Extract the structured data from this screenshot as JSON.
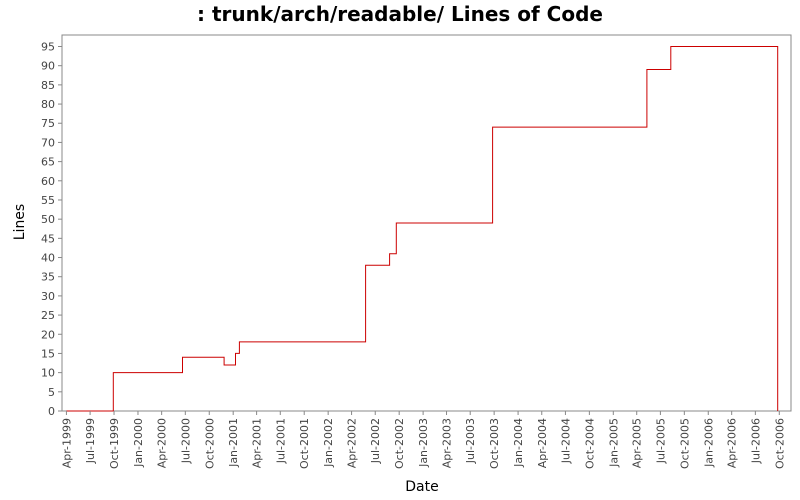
{
  "chart_data": {
    "type": "line",
    "title": ": trunk/arch/readable/ Lines of Code",
    "xlabel": "Date",
    "ylabel": "Lines",
    "ylim": [
      0,
      98
    ],
    "xlim": [
      "1999-03-15",
      "2006-11-15"
    ],
    "y_ticks": [
      0,
      5,
      10,
      15,
      20,
      25,
      30,
      35,
      40,
      45,
      50,
      55,
      60,
      65,
      70,
      75,
      80,
      85,
      90,
      95
    ],
    "x_ticks": [
      {
        "date": "1999-04-01",
        "label": "Apr-1999"
      },
      {
        "date": "1999-07-01",
        "label": "Jul-1999"
      },
      {
        "date": "1999-10-01",
        "label": "Oct-1999"
      },
      {
        "date": "2000-01-01",
        "label": "Jan-2000"
      },
      {
        "date": "2000-04-01",
        "label": "Apr-2000"
      },
      {
        "date": "2000-07-01",
        "label": "Jul-2000"
      },
      {
        "date": "2000-10-01",
        "label": "Oct-2000"
      },
      {
        "date": "2001-01-01",
        "label": "Jan-2001"
      },
      {
        "date": "2001-04-01",
        "label": "Apr-2001"
      },
      {
        "date": "2001-07-01",
        "label": "Jul-2001"
      },
      {
        "date": "2001-10-01",
        "label": "Oct-2001"
      },
      {
        "date": "2002-01-01",
        "label": "Jan-2002"
      },
      {
        "date": "2002-04-01",
        "label": "Apr-2002"
      },
      {
        "date": "2002-07-01",
        "label": "Jul-2002"
      },
      {
        "date": "2002-10-01",
        "label": "Oct-2002"
      },
      {
        "date": "2003-01-01",
        "label": "Jan-2003"
      },
      {
        "date": "2003-04-01",
        "label": "Apr-2003"
      },
      {
        "date": "2003-07-01",
        "label": "Jul-2003"
      },
      {
        "date": "2003-10-01",
        "label": "Oct-2003"
      },
      {
        "date": "2004-01-01",
        "label": "Jan-2004"
      },
      {
        "date": "2004-04-01",
        "label": "Apr-2004"
      },
      {
        "date": "2004-07-01",
        "label": "Jul-2004"
      },
      {
        "date": "2004-10-01",
        "label": "Oct-2004"
      },
      {
        "date": "2005-01-01",
        "label": "Jan-2005"
      },
      {
        "date": "2005-04-01",
        "label": "Apr-2005"
      },
      {
        "date": "2005-07-01",
        "label": "Jul-2005"
      },
      {
        "date": "2005-10-01",
        "label": "Oct-2005"
      },
      {
        "date": "2006-01-01",
        "label": "Jan-2006"
      },
      {
        "date": "2006-04-01",
        "label": "Apr-2006"
      },
      {
        "date": "2006-07-01",
        "label": "Jul-2006"
      },
      {
        "date": "2006-10-01",
        "label": "Oct-2006"
      }
    ],
    "step": true,
    "grid": false,
    "series": [
      {
        "color": "#cc0000",
        "points": [
          {
            "x": "1999-04-01",
            "y": 0
          },
          {
            "x": "1999-09-28",
            "y": 10
          },
          {
            "x": "2000-06-20",
            "y": 14
          },
          {
            "x": "2000-11-27",
            "y": 12
          },
          {
            "x": "2001-01-10",
            "y": 15
          },
          {
            "x": "2001-01-25",
            "y": 18
          },
          {
            "x": "2002-05-25",
            "y": 38
          },
          {
            "x": "2002-08-25",
            "y": 41
          },
          {
            "x": "2002-09-20",
            "y": 49
          },
          {
            "x": "2003-09-25",
            "y": 74
          },
          {
            "x": "2005-05-10",
            "y": 89
          },
          {
            "x": "2005-08-10",
            "y": 95
          },
          {
            "x": "2006-09-25",
            "y": 0
          }
        ]
      }
    ]
  }
}
